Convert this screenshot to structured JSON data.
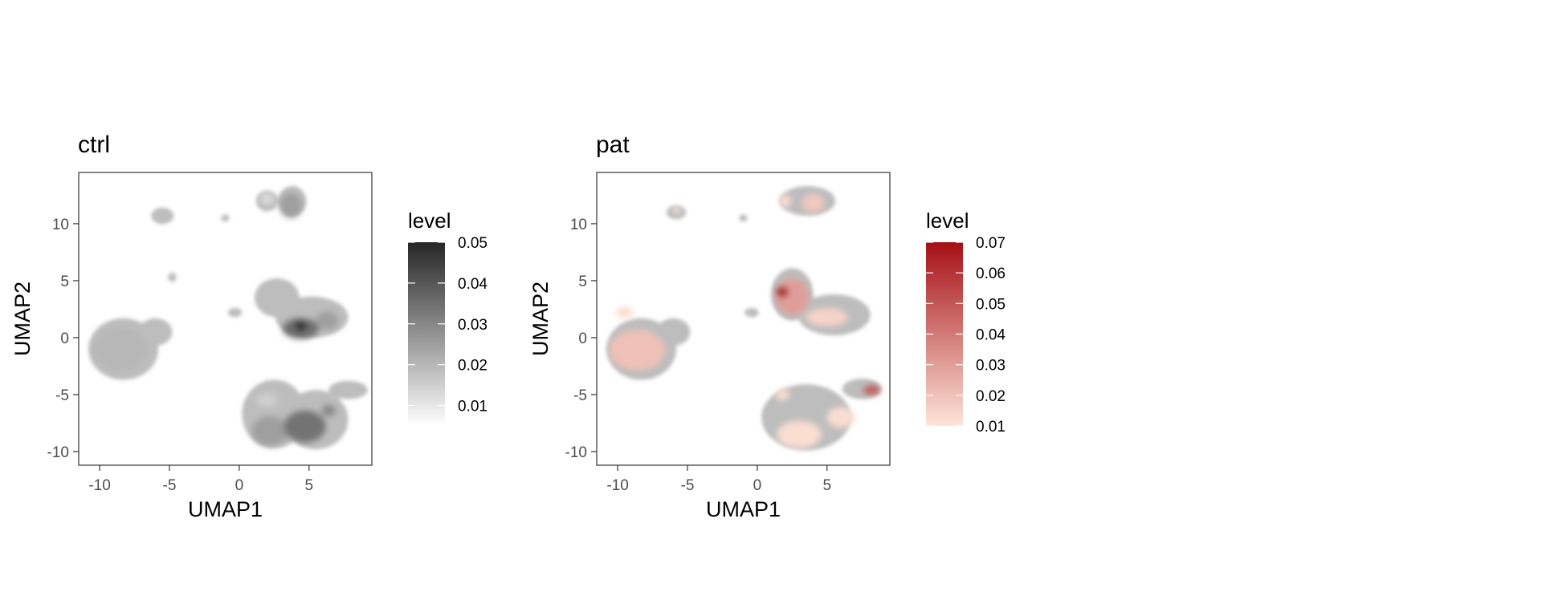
{
  "chart_data": [
    {
      "type": "contour",
      "title": "ctrl",
      "xlabel": "UMAP1",
      "ylabel": "UMAP2",
      "xlim": [
        -11.5,
        9.5
      ],
      "ylim": [
        -11.2,
        14.5
      ],
      "xticks": [
        -10,
        -5,
        0,
        5
      ],
      "xtick_labels": [
        "-10",
        "-5",
        "0",
        "5"
      ],
      "yticks": [
        -10,
        -5,
        0,
        5,
        10
      ],
      "ytick_labels": [
        "-10",
        "-5",
        "0",
        "5",
        "10"
      ],
      "grid": false,
      "background_color": "#bdbdbd",
      "colorscale": {
        "low": "#ffffff",
        "high": "#262626"
      },
      "legend": {
        "title": "level",
        "position": "right",
        "range": [
          0.005,
          0.05
        ],
        "ticks": [
          0.01,
          0.02,
          0.03,
          0.04,
          0.05
        ],
        "tick_labels": [
          "0.01",
          "0.02",
          "0.03",
          "0.04",
          "0.05"
        ]
      },
      "clusters": [
        {
          "cx": -8.3,
          "cy": -1.0,
          "rx": 2.5,
          "ry": 2.7
        },
        {
          "cx": -6.0,
          "cy": 0.5,
          "rx": 1.2,
          "ry": 1.2
        },
        {
          "cx": -5.5,
          "cy": 10.7,
          "rx": 0.8,
          "ry": 0.7
        },
        {
          "cx": -4.8,
          "cy": 5.3,
          "rx": 0.3,
          "ry": 0.4
        },
        {
          "cx": -1.0,
          "cy": 10.5,
          "rx": 0.3,
          "ry": 0.3
        },
        {
          "cx": -0.3,
          "cy": 2.2,
          "rx": 0.5,
          "ry": 0.4
        },
        {
          "cx": 2.0,
          "cy": 12.0,
          "rx": 0.8,
          "ry": 0.9
        },
        {
          "cx": 3.8,
          "cy": 12.0,
          "rx": 1.0,
          "ry": 1.3
        },
        {
          "cx": 2.7,
          "cy": 3.5,
          "rx": 1.6,
          "ry": 1.7
        },
        {
          "cx": 5.2,
          "cy": 1.8,
          "rx": 2.6,
          "ry": 1.8
        },
        {
          "cx": 2.5,
          "cy": -6.7,
          "rx": 2.3,
          "ry": 3.0
        },
        {
          "cx": 5.5,
          "cy": -7.2,
          "rx": 2.3,
          "ry": 2.6
        },
        {
          "cx": 7.8,
          "cy": -4.6,
          "rx": 1.4,
          "ry": 0.8
        }
      ],
      "peaks": [
        {
          "cx": -8.5,
          "cy": -1.0,
          "rx": 1.9,
          "ry": 1.9,
          "level": 0.02
        },
        {
          "cx": -5.6,
          "cy": 10.6,
          "rx": 0.4,
          "ry": 0.4,
          "level": 0.018
        },
        {
          "cx": 3.7,
          "cy": 11.6,
          "rx": 0.8,
          "ry": 1.1,
          "level": 0.025
        },
        {
          "cx": 2.0,
          "cy": 12.2,
          "rx": 0.5,
          "ry": 0.5,
          "level": 0.012
        },
        {
          "cx": 4.4,
          "cy": 0.8,
          "rx": 1.3,
          "ry": 0.9,
          "level": 0.035
        },
        {
          "cx": 4.4,
          "cy": 1.0,
          "rx": 0.45,
          "ry": 0.45,
          "level": 0.048
        },
        {
          "cx": 6.3,
          "cy": 1.5,
          "rx": 0.8,
          "ry": 0.8,
          "level": 0.025
        },
        {
          "cx": 2.2,
          "cy": -8.2,
          "rx": 1.3,
          "ry": 1.3,
          "level": 0.025
        },
        {
          "cx": 4.7,
          "cy": -7.8,
          "rx": 1.5,
          "ry": 1.4,
          "level": 0.034
        },
        {
          "cx": 6.4,
          "cy": -6.4,
          "rx": 0.5,
          "ry": 0.5,
          "level": 0.03
        },
        {
          "cx": 2.0,
          "cy": -5.5,
          "rx": 0.8,
          "ry": 0.6,
          "level": 0.015
        }
      ]
    },
    {
      "type": "contour",
      "title": "pat",
      "xlabel": "UMAP1",
      "ylabel": "UMAP2",
      "xlim": [
        -11.5,
        9.5
      ],
      "ylim": [
        -11.2,
        14.5
      ],
      "xticks": [
        -10,
        -5,
        0,
        5
      ],
      "xtick_labels": [
        "-10",
        "-5",
        "0",
        "5"
      ],
      "yticks": [
        -10,
        -5,
        0,
        5,
        10
      ],
      "ytick_labels": [
        "-10",
        "-5",
        "0",
        "5",
        "10"
      ],
      "grid": false,
      "background_color": "#bdbdbd",
      "colorscale": {
        "low": "#fee5d9",
        "high": "#a50f15"
      },
      "legend": {
        "title": "level",
        "position": "right",
        "range": [
          0.01,
          0.07
        ],
        "ticks": [
          0.01,
          0.02,
          0.03,
          0.04,
          0.05,
          0.06,
          0.07
        ],
        "tick_labels": [
          "0.01",
          "0.02",
          "0.03",
          "0.04",
          "0.05",
          "0.06",
          "0.07"
        ]
      },
      "clusters": [
        {
          "cx": -8.3,
          "cy": -1.0,
          "rx": 2.5,
          "ry": 2.7
        },
        {
          "cx": -6.0,
          "cy": 0.5,
          "rx": 1.2,
          "ry": 1.2
        },
        {
          "cx": -5.8,
          "cy": 11.0,
          "rx": 0.7,
          "ry": 0.6
        },
        {
          "cx": -1.0,
          "cy": 10.5,
          "rx": 0.3,
          "ry": 0.3
        },
        {
          "cx": -0.4,
          "cy": 2.2,
          "rx": 0.5,
          "ry": 0.4
        },
        {
          "cx": 3.6,
          "cy": 12.0,
          "rx": 2.0,
          "ry": 1.3
        },
        {
          "cx": 2.5,
          "cy": 3.8,
          "rx": 1.5,
          "ry": 2.3
        },
        {
          "cx": 5.5,
          "cy": 2.0,
          "rx": 2.6,
          "ry": 1.8
        },
        {
          "cx": 3.5,
          "cy": -7.0,
          "rx": 3.2,
          "ry": 2.9
        },
        {
          "cx": 7.5,
          "cy": -4.5,
          "rx": 1.4,
          "ry": 0.9
        }
      ],
      "peaks": [
        {
          "cx": -8.6,
          "cy": -1.1,
          "rx": 2.0,
          "ry": 1.8,
          "level": 0.02
        },
        {
          "cx": -9.5,
          "cy": 2.2,
          "rx": 0.6,
          "ry": 0.5,
          "level": 0.012
        },
        {
          "cx": -5.8,
          "cy": 11.2,
          "rx": 0.3,
          "ry": 0.3,
          "level": 0.012
        },
        {
          "cx": 2.0,
          "cy": 12.0,
          "rx": 0.4,
          "ry": 0.6,
          "level": 0.012
        },
        {
          "cx": 4.0,
          "cy": 11.8,
          "rx": 0.8,
          "ry": 0.8,
          "level": 0.018
        },
        {
          "cx": 2.5,
          "cy": 3.6,
          "rx": 1.2,
          "ry": 1.6,
          "level": 0.03
        },
        {
          "cx": 1.8,
          "cy": 4.0,
          "rx": 0.45,
          "ry": 0.5,
          "level": 0.065
        },
        {
          "cx": 5.0,
          "cy": 1.8,
          "rx": 1.5,
          "ry": 0.8,
          "level": 0.015
        },
        {
          "cx": 8.2,
          "cy": -4.6,
          "rx": 0.6,
          "ry": 0.4,
          "level": 0.05
        },
        {
          "cx": 3.0,
          "cy": -8.5,
          "rx": 1.6,
          "ry": 1.2,
          "level": 0.012
        },
        {
          "cx": 6.0,
          "cy": -7.0,
          "rx": 1.0,
          "ry": 0.9,
          "level": 0.012
        },
        {
          "cx": 1.8,
          "cy": -5.0,
          "rx": 0.5,
          "ry": 0.5,
          "level": 0.012
        }
      ]
    }
  ]
}
